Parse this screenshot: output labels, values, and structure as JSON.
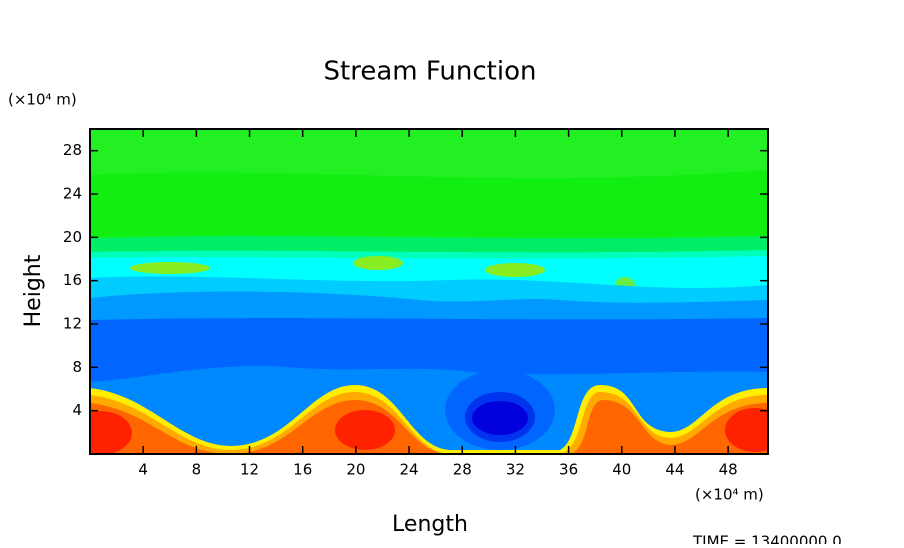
{
  "chart_data": {
    "type": "contour",
    "title": "Stream Function",
    "x_label": "Length",
    "y_label": "Height",
    "x_unit": "(×10⁴ m)",
    "y_unit": "(×10⁴ m)",
    "annotation": "TIME = 13400000.0",
    "xlim": [
      0,
      51
    ],
    "ylim": [
      0,
      30
    ],
    "xticks": [
      4,
      8,
      12,
      16,
      20,
      24,
      28,
      32,
      36,
      40,
      44,
      48
    ],
    "yticks": [
      4,
      8,
      12,
      16,
      20,
      24,
      28
    ]
  }
}
